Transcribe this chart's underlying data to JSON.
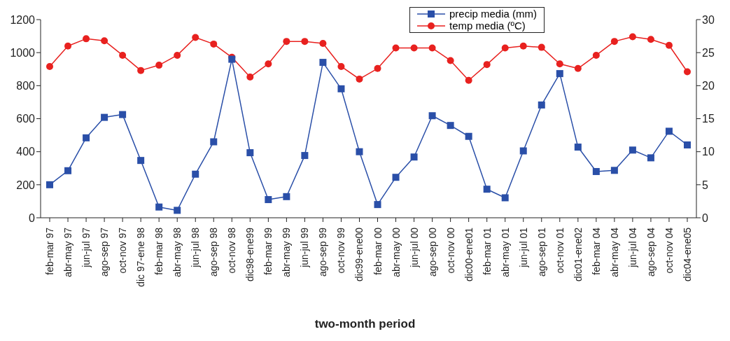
{
  "chart_data": {
    "type": "line",
    "xlabel": "two-month period",
    "categories": [
      "feb-mar 97",
      "abr-may 97",
      "jun-jul 97",
      "ago-sep 97",
      "oct-nov 97",
      "dic 97-ene 98",
      "feb-mar 98",
      "abr-may 98",
      "jun-jul 98",
      "ago-sep 98",
      "oct-nov 98",
      "dic98-ene99",
      "feb-mar 99",
      "abr-may 99",
      "jun-jul 99",
      "ago-sep 99",
      "oct-nov 99",
      "dic99-ene00",
      "feb-mar 00",
      "abr-may 00",
      "jun-jul 00",
      "ago-sep 00",
      "oct-nov 00",
      "dic00-ene01",
      "feb-mar 01",
      "abr-may 01",
      "jun-jul 01",
      "ago-sep 01",
      "oct-nov 01",
      "dic01-ene02",
      "feb-mar 04",
      "abr-may 04",
      "jun-jul 04",
      "ago-sep 04",
      "oct-nov 04",
      "dic04-ene05"
    ],
    "series": [
      {
        "name": "precip media (mm)",
        "color": "#2a4fa8",
        "marker": "square",
        "values": [
          200,
          285,
          484,
          608,
          625,
          347,
          65,
          45,
          264,
          460,
          960,
          394,
          110,
          128,
          377,
          941,
          781,
          400,
          80,
          245,
          368,
          618,
          559,
          493,
          173,
          121,
          405,
          683,
          873,
          428,
          280,
          287,
          410,
          363,
          524,
          441
        ]
      },
      {
        "name": "temp media (ºC)",
        "color": "#e8211f",
        "marker": "circle",
        "axis": "y2",
        "values": [
          22.9,
          26.0,
          27.1,
          26.8,
          24.6,
          22.3,
          23.1,
          24.6,
          27.3,
          26.3,
          24.3,
          21.3,
          23.3,
          26.7,
          26.7,
          26.4,
          22.9,
          21.0,
          22.6,
          25.7,
          25.7,
          25.7,
          23.8,
          20.8,
          23.2,
          25.7,
          26.0,
          25.8,
          23.3,
          22.6,
          24.6,
          26.7,
          27.4,
          27.0,
          26.1,
          22.1
        ]
      }
    ],
    "ylim": [
      0,
      1200
    ],
    "yticks": [
      0,
      200,
      400,
      600,
      800,
      1000,
      1200
    ],
    "y2lim": [
      0,
      30
    ],
    "y2ticks": [
      0,
      5,
      10,
      15,
      20,
      25,
      30
    ],
    "grid": false,
    "legend": "top"
  }
}
